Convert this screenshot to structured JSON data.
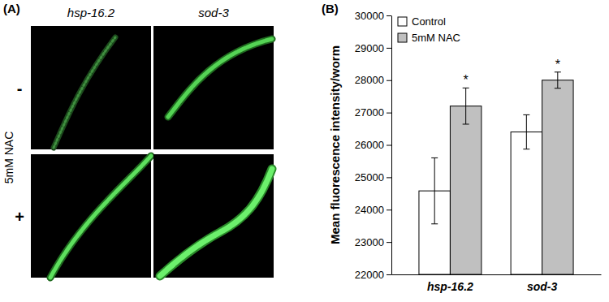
{
  "panel_a": {
    "label": "(A)",
    "columns": [
      "hsp-16.2",
      "sod-3"
    ],
    "row_title": "5mM NAC",
    "rows": [
      "-",
      "+"
    ]
  },
  "panel_b": {
    "label": "(B)"
  },
  "chart_data": {
    "type": "bar",
    "y_label": "Mean fluorescence intensity/worm",
    "categories": [
      "hsp-16.2",
      "sod-3"
    ],
    "series": [
      {
        "name": "Control",
        "color": "#ffffff",
        "values": [
          24580,
          26400
        ],
        "errors": [
          1020,
          530
        ]
      },
      {
        "name": "5mM NAC",
        "color": "#c0c0c0",
        "values": [
          27200,
          28000
        ],
        "errors": [
          560,
          250
        ]
      }
    ],
    "annotations": [
      {
        "text": "*",
        "series": "5mM NAC",
        "category": "hsp-16.2"
      },
      {
        "text": "*",
        "series": "5mM NAC",
        "category": "sod-3"
      }
    ],
    "ylim": [
      22000,
      30000
    ],
    "yticks": [
      22000,
      23000,
      24000,
      25000,
      26000,
      27000,
      28000,
      29000,
      30000
    ],
    "grid": false,
    "legend": "upper left"
  }
}
